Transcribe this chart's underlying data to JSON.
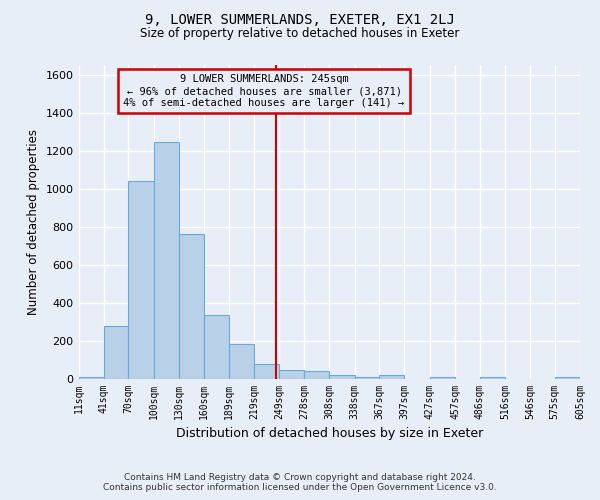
{
  "title": "9, LOWER SUMMERLANDS, EXETER, EX1 2LJ",
  "subtitle": "Size of property relative to detached houses in Exeter",
  "xlabel": "Distribution of detached houses by size in Exeter",
  "ylabel": "Number of detached properties",
  "footer_line1": "Contains HM Land Registry data © Crown copyright and database right 2024.",
  "footer_line2": "Contains public sector information licensed under the Open Government Licence v3.0.",
  "annotation_line1": "9 LOWER SUMMERLANDS: 245sqm",
  "annotation_line2": "← 96% of detached houses are smaller (3,871)",
  "annotation_line3": "4% of semi-detached houses are larger (141) →",
  "property_size": 245,
  "bar_edges": [
    11,
    41,
    70,
    100,
    130,
    160,
    189,
    219,
    249,
    278,
    308,
    338,
    367,
    397,
    427,
    457,
    486,
    516,
    546,
    575,
    605
  ],
  "bar_heights": [
    10,
    275,
    1040,
    1245,
    760,
    335,
    180,
    75,
    45,
    40,
    20,
    10,
    20,
    0,
    10,
    0,
    10,
    0,
    0,
    10
  ],
  "bar_color": "#b8d0e8",
  "bar_edge_color": "#6aaad4",
  "vline_color": "#cc0000",
  "vline_x": 245,
  "annotation_box_color": "#cc0000",
  "background_color": "#e8eef8",
  "grid_color": "#ffffff",
  "ylim": [
    0,
    1650
  ],
  "yticks": [
    0,
    200,
    400,
    600,
    800,
    1000,
    1200,
    1400,
    1600
  ]
}
